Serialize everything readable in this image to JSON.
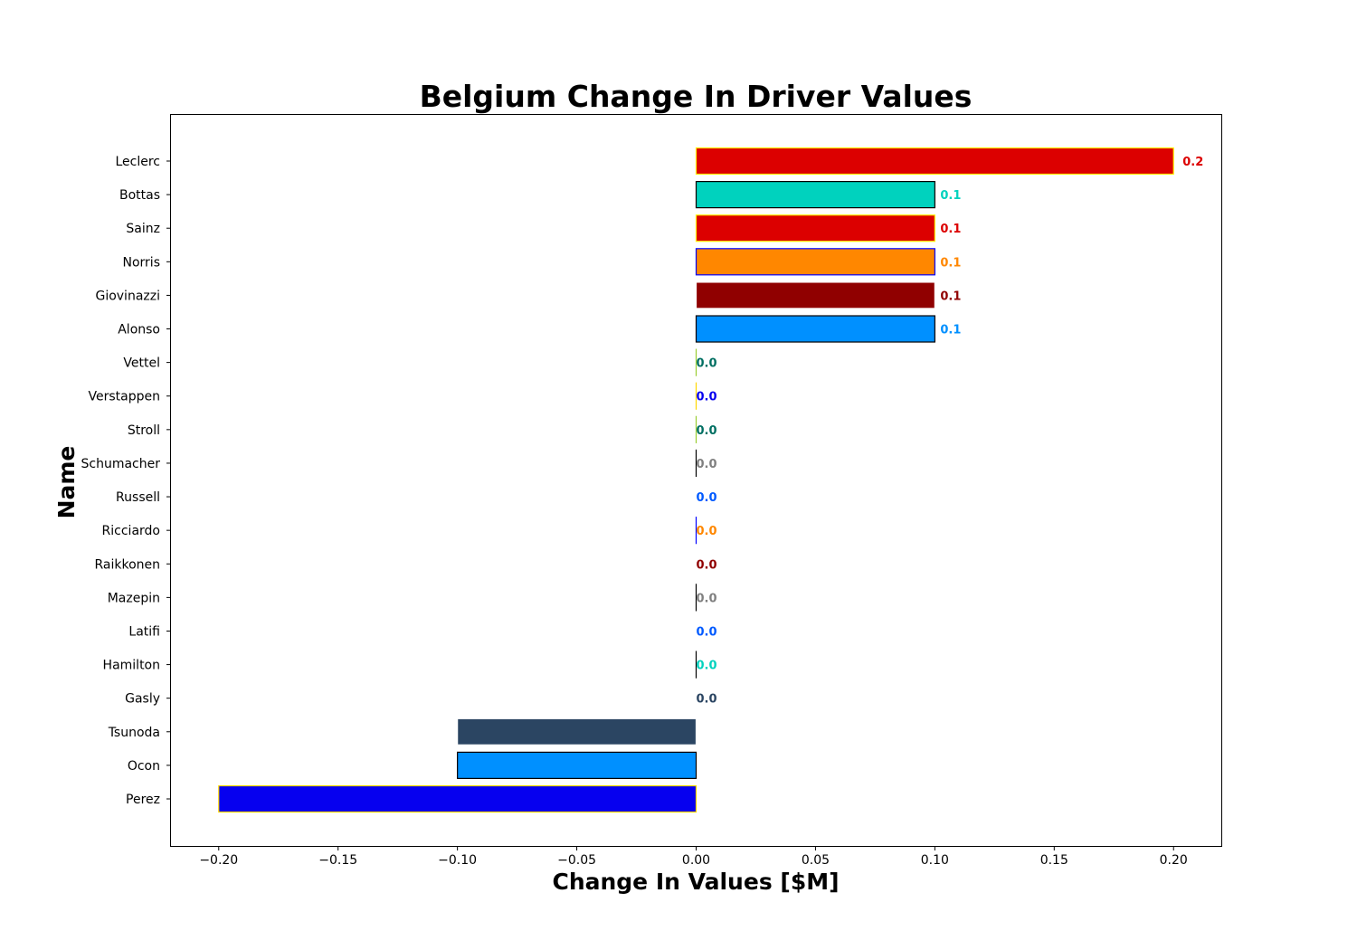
{
  "chart_data": {
    "type": "bar",
    "orientation": "horizontal",
    "title": "Belgium Change In Driver Values",
    "xlabel": "Change In Values [$M]",
    "ylabel": "Name",
    "xlim": [
      -0.22,
      0.22
    ],
    "xticks": [
      -0.2,
      -0.15,
      -0.1,
      -0.05,
      0.0,
      0.05,
      0.1,
      0.15,
      0.2
    ],
    "xtick_labels": [
      "−0.20",
      "−0.15",
      "−0.10",
      "−0.05",
      "0.00",
      "0.05",
      "0.10",
      "0.15",
      "0.20"
    ],
    "grid": false,
    "bars": [
      {
        "name": "Leclerc",
        "value": 0.2,
        "label": "0.2",
        "fill": "#dc0000",
        "edge": "#fff500",
        "label_color": "#dc0000"
      },
      {
        "name": "Bottas",
        "value": 0.1,
        "label": "0.1",
        "fill": "#00d2be",
        "edge": "#000000",
        "label_color": "#00d2be"
      },
      {
        "name": "Sainz",
        "value": 0.1,
        "label": "0.1",
        "fill": "#dc0000",
        "edge": "#fff500",
        "label_color": "#dc0000"
      },
      {
        "name": "Norris",
        "value": 0.1,
        "label": "0.1",
        "fill": "#ff8700",
        "edge": "#0000ff",
        "label_color": "#ff8700"
      },
      {
        "name": "Giovinazzi",
        "value": 0.1,
        "label": "0.1",
        "fill": "#900000",
        "edge": "#ffffff",
        "label_color": "#900000"
      },
      {
        "name": "Alonso",
        "value": 0.1,
        "label": "0.1",
        "fill": "#0090ff",
        "edge": "#000000",
        "label_color": "#0090ff"
      },
      {
        "name": "Vettel",
        "value": 0.0,
        "label": "0.0",
        "fill": "#006f62",
        "edge": "#9acd32",
        "label_color": "#006f62"
      },
      {
        "name": "Verstappen",
        "value": 0.0,
        "label": "0.0",
        "fill": "#0600ef",
        "edge": "#ffd700",
        "label_color": "#0600ef"
      },
      {
        "name": "Stroll",
        "value": 0.0,
        "label": "0.0",
        "fill": "#006f62",
        "edge": "#9acd32",
        "label_color": "#006f62"
      },
      {
        "name": "Schumacher",
        "value": 0.0,
        "label": "0.0",
        "fill": "#808080",
        "edge": "#000000",
        "label_color": "#808080"
      },
      {
        "name": "Russell",
        "value": 0.0,
        "label": "0.0",
        "fill": "#005aff",
        "edge": "#ffffff",
        "label_color": "#005aff"
      },
      {
        "name": "Ricciardo",
        "value": 0.0,
        "label": "0.0",
        "fill": "#ff8700",
        "edge": "#0000ff",
        "label_color": "#ff8700"
      },
      {
        "name": "Raikkonen",
        "value": 0.0,
        "label": "0.0",
        "fill": "#900000",
        "edge": "#ffffff",
        "label_color": "#900000"
      },
      {
        "name": "Mazepin",
        "value": 0.0,
        "label": "0.0",
        "fill": "#808080",
        "edge": "#000000",
        "label_color": "#808080"
      },
      {
        "name": "Latifi",
        "value": 0.0,
        "label": "0.0",
        "fill": "#005aff",
        "edge": "#ffffff",
        "label_color": "#005aff"
      },
      {
        "name": "Hamilton",
        "value": 0.0,
        "label": "0.0",
        "fill": "#00d2be",
        "edge": "#000000",
        "label_color": "#00d2be"
      },
      {
        "name": "Gasly",
        "value": 0.0,
        "label": "0.0",
        "fill": "#2b4562",
        "edge": "#ffffff",
        "label_color": "#2b4562"
      },
      {
        "name": "Tsunoda",
        "value": -0.1,
        "label": "",
        "fill": "#2b4562",
        "edge": "#ffffff",
        "label_color": "#2b4562"
      },
      {
        "name": "Ocon",
        "value": -0.1,
        "label": "",
        "fill": "#0090ff",
        "edge": "#000000",
        "label_color": "#0090ff"
      },
      {
        "name": "Perez",
        "value": -0.2,
        "label": "",
        "fill": "#0600ef",
        "edge": "#ffd700",
        "label_color": "#0600ef"
      }
    ]
  }
}
